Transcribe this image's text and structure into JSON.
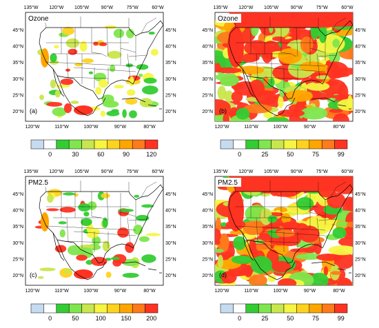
{
  "panels": [
    {
      "label": "(a)",
      "title": "Ozone",
      "top_lon": [
        "135°W",
        "120°W",
        "105°W",
        "90°W",
        "75°W",
        "60°W"
      ],
      "bottom_lon": [
        "120°W",
        "110°W",
        "100°W",
        "90°W",
        "80°W"
      ],
      "lat": [
        "45°N",
        "40°N",
        "35°N",
        "30°N",
        "25°N",
        "20°N"
      ],
      "lat_side": "right",
      "colorbar": [
        "0",
        "30",
        "60",
        "90",
        "120"
      ],
      "coverage": "sparse"
    },
    {
      "label": "(b)",
      "title": "Ozone",
      "top_lon": [
        "135°W",
        "120°W",
        "105°W",
        "90°W",
        "75°W",
        "60°W"
      ],
      "bottom_lon": [
        "120°W",
        "110°W",
        "100°W",
        "90°W",
        "80°W"
      ],
      "lat": [
        "45°N",
        "40°N",
        "35°N",
        "30°N",
        "25°N",
        "20°N"
      ],
      "lat_side": "left",
      "colorbar": [
        "0",
        "25",
        "50",
        "75",
        "99"
      ],
      "coverage": "dense"
    },
    {
      "label": "(c)",
      "title": "PM2.5",
      "top_lon": [
        "135°W",
        "120°W",
        "105°W",
        "90°W",
        "75°W",
        "60°W"
      ],
      "bottom_lon": [
        "120°W",
        "110°W",
        "100°W",
        "90°W",
        "80°W"
      ],
      "lat": [
        "45°N",
        "40°N",
        "35°N",
        "30°N",
        "25°N",
        "20°N"
      ],
      "lat_side": "right",
      "colorbar": [
        "0",
        "50",
        "100",
        "150",
        "200"
      ],
      "coverage": "sparse"
    },
    {
      "label": "(d)",
      "title": "PM2.5",
      "top_lon": [
        "135°W",
        "120°W",
        "105°W",
        "90°W",
        "75°W",
        "60°W"
      ],
      "bottom_lon": [
        "120°W",
        "110°W",
        "100°W",
        "90°W",
        "80°W"
      ],
      "lat": [
        "45°N",
        "40°N",
        "35°N",
        "30°N",
        "25°N",
        "20°N"
      ],
      "lat_side": "left",
      "colorbar": [
        "0",
        "25",
        "50",
        "75",
        "99"
      ],
      "coverage": "dense"
    }
  ],
  "colorbar_colors": [
    "#c6dbef",
    "#ffffff",
    "#33cc33",
    "#80e64d",
    "#c8e64d",
    "#f5f542",
    "#ffd21f",
    "#ffa500",
    "#ff7a1a",
    "#ff3322"
  ]
}
